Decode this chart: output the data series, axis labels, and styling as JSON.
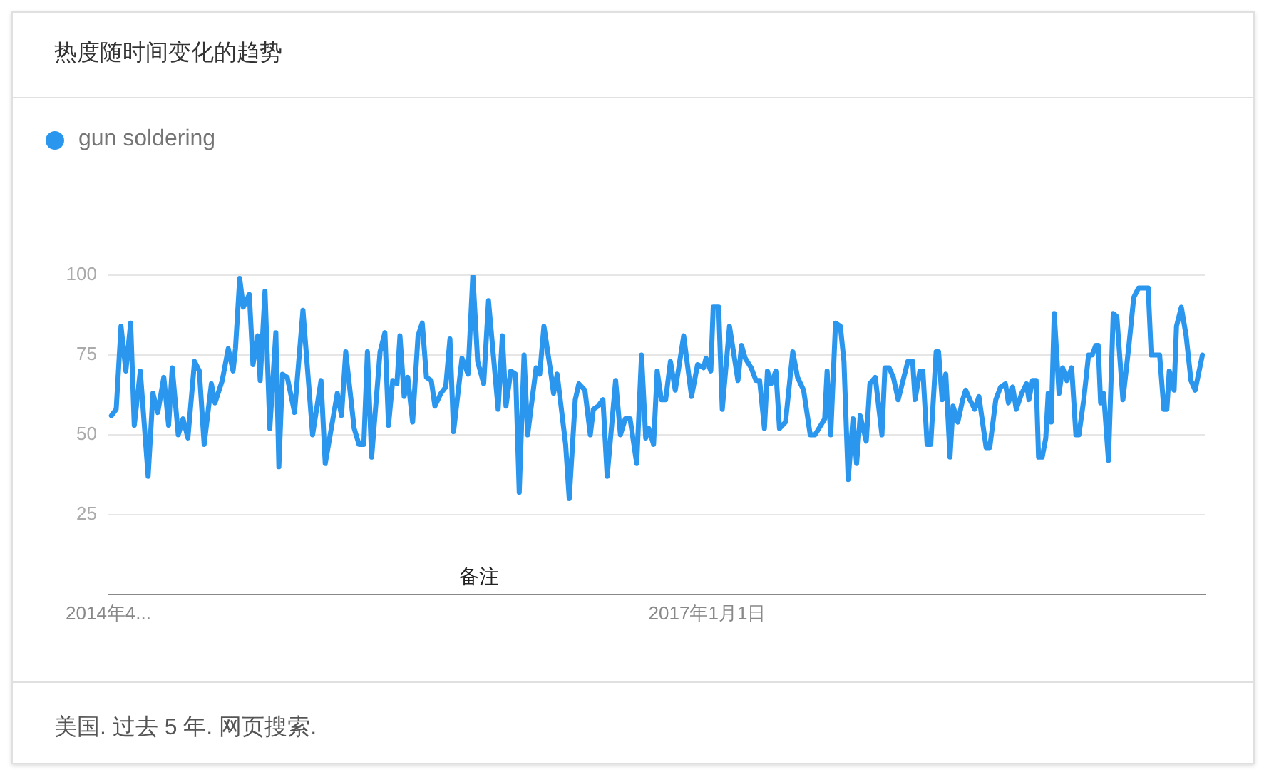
{
  "chart_data": {
    "type": "line",
    "title": "热度随时间变化的趋势",
    "legend": "top left",
    "grid": "y",
    "marker": "none",
    "line_style": "solid",
    "xlim": [
      "2014-04-13",
      "2019-04-07"
    ],
    "xticks": [
      {
        "value": "2014-04-13",
        "label": "2014年4..."
      },
      {
        "value": "2017-01-01",
        "label": "2017年1月1日"
      }
    ],
    "ylim": [
      0,
      100
    ],
    "yticks": [
      25,
      50,
      75,
      100
    ],
    "annotations": [
      "备注",
      "美国. 过去 5 年. 网页搜索."
    ],
    "series": [
      {
        "name": "gun soldering",
        "color": "#2a96ee",
        "x": [
          "2014-04-18",
          "2014-04-26",
          "2014-05-04",
          "2014-05-12",
          "2014-05-20",
          "2014-05-26",
          "2014-06-05",
          "2014-06-18",
          "2014-06-26",
          "2014-07-04",
          "2014-07-14",
          "2014-07-22",
          "2014-07-28",
          "2014-08-07",
          "2014-08-15",
          "2014-08-23",
          "2014-09-03",
          "2014-09-11",
          "2014-09-19",
          "2014-10-01",
          "2014-10-07",
          "2014-10-19",
          "2014-10-29",
          "2014-11-06",
          "2014-11-10",
          "2014-11-17",
          "2014-11-23",
          "2014-12-03",
          "2014-12-09",
          "2014-12-17",
          "2014-12-21",
          "2014-12-29",
          "2015-01-06",
          "2015-01-16",
          "2015-01-21",
          "2015-01-27",
          "2015-02-04",
          "2015-02-16",
          "2015-03-02",
          "2015-03-18",
          "2015-04-01",
          "2015-04-08",
          "2015-04-28",
          "2015-05-05",
          "2015-05-12",
          "2015-05-26",
          "2015-06-03",
          "2015-06-11",
          "2015-06-17",
          "2015-06-24",
          "2015-07-08",
          "2015-07-16",
          "2015-07-22",
          "2015-07-29",
          "2015-08-05",
          "2015-08-10",
          "2015-08-17",
          "2015-08-23",
          "2015-08-31",
          "2015-09-09",
          "2015-09-16",
          "2015-09-23",
          "2015-10-01",
          "2015-10-07",
          "2015-10-17",
          "2015-10-25",
          "2015-11-01",
          "2015-11-07",
          "2015-11-21",
          "2015-12-01",
          "2015-12-09",
          "2015-12-17",
          "2015-12-27",
          "2016-01-04",
          "2016-01-20",
          "2016-01-27",
          "2016-02-02",
          "2016-02-10",
          "2016-02-18",
          "2016-02-24",
          "2016-03-03",
          "2016-03-09",
          "2016-03-23",
          "2016-03-29",
          "2016-04-05",
          "2016-04-16",
          "2016-04-21",
          "2016-04-27",
          "2016-05-11",
          "2016-05-17",
          "2016-05-27",
          "2016-06-02",
          "2016-06-12",
          "2016-06-21",
          "2016-06-26",
          "2016-07-04",
          "2016-07-12",
          "2016-07-19",
          "2016-08-02",
          "2016-08-10",
          "2016-08-18",
          "2016-08-26",
          "2016-09-06",
          "2016-09-14",
          "2016-09-21",
          "2016-09-26",
          "2016-10-04",
          "2016-10-10",
          "2016-10-17",
          "2016-10-24",
          "2016-11-01",
          "2016-11-09",
          "2016-11-23",
          "2016-12-06",
          "2016-12-16",
          "2016-12-26",
          "2016-12-30",
          "2017-01-07",
          "2017-01-11",
          "2017-01-20",
          "2017-01-26",
          "2017-02-07",
          "2017-02-21",
          "2017-02-27",
          "2017-03-05",
          "2017-03-15",
          "2017-03-23",
          "2017-03-29",
          "2017-04-06",
          "2017-04-11",
          "2017-04-17",
          "2017-04-25",
          "2017-05-01",
          "2017-05-11",
          "2017-05-23",
          "2017-05-31",
          "2017-06-10",
          "2017-06-21",
          "2017-06-29",
          "2017-07-15",
          "2017-07-19",
          "2017-07-25",
          "2017-08-02",
          "2017-08-10",
          "2017-08-16",
          "2017-08-23",
          "2017-08-31",
          "2017-09-06",
          "2017-09-12",
          "2017-09-22",
          "2017-09-28",
          "2017-10-07",
          "2017-10-18",
          "2017-10-23",
          "2017-10-30",
          "2017-11-06",
          "2017-11-14",
          "2017-11-22",
          "2017-11-30",
          "2017-12-08",
          "2017-12-12",
          "2017-12-20",
          "2017-12-25",
          "2018-01-01",
          "2018-01-07",
          "2018-01-16",
          "2018-01-20",
          "2018-01-26",
          "2018-02-01",
          "2018-02-08",
          "2018-02-13",
          "2018-02-21",
          "2018-03-01",
          "2018-03-06",
          "2018-03-13",
          "2018-03-21",
          "2018-03-28",
          "2018-04-09",
          "2018-04-15",
          "2018-04-25",
          "2018-05-03",
          "2018-05-11",
          "2018-05-16",
          "2018-05-23",
          "2018-05-29",
          "2018-06-07",
          "2018-06-15",
          "2018-06-19",
          "2018-06-25",
          "2018-07-01",
          "2018-07-05",
          "2018-07-11",
          "2018-07-17",
          "2018-07-21",
          "2018-07-26",
          "2018-07-31",
          "2018-08-08",
          "2018-08-14",
          "2018-08-21",
          "2018-08-29",
          "2018-09-05",
          "2018-09-10",
          "2018-09-18",
          "2018-09-26",
          "2018-10-02",
          "2018-10-08",
          "2018-10-12",
          "2018-10-16",
          "2018-10-21",
          "2018-10-29",
          "2018-11-06",
          "2018-11-12",
          "2018-11-22",
          "2018-12-02",
          "2018-12-10",
          "2018-12-18",
          "2018-12-26",
          "2019-01-03",
          "2019-01-08",
          "2019-01-22",
          "2019-01-29",
          "2019-02-03",
          "2019-02-07",
          "2019-02-15",
          "2019-02-19",
          "2019-02-27",
          "2019-03-07",
          "2019-03-15",
          "2019-03-22",
          "2019-04-03"
        ],
        "values": [
          56,
          58,
          84,
          70,
          85,
          53,
          70,
          37,
          63,
          57,
          68,
          53,
          71,
          50,
          55,
          49,
          73,
          70,
          47,
          66,
          60,
          67,
          77,
          70,
          77,
          99,
          90,
          94,
          72,
          81,
          67,
          95,
          52,
          82,
          40,
          69,
          68,
          57,
          89,
          50,
          67,
          41,
          63,
          56,
          76,
          52,
          47,
          47,
          76,
          43,
          76,
          82,
          53,
          67,
          66,
          81,
          62,
          68,
          54,
          81,
          85,
          68,
          67,
          59,
          63,
          65,
          80,
          51,
          74,
          69,
          100,
          73,
          66,
          92,
          58,
          81,
          59,
          70,
          69,
          32,
          75,
          50,
          71,
          69,
          84,
          70,
          63,
          69,
          47,
          30,
          61,
          66,
          64,
          50,
          58,
          59,
          61,
          37,
          67,
          50,
          55,
          55,
          41,
          75,
          49,
          52,
          47,
          70,
          61,
          61,
          73,
          64,
          81,
          62,
          72,
          71,
          74,
          70,
          90,
          90,
          58,
          84,
          67,
          78,
          74,
          71,
          67,
          67,
          52,
          70,
          66,
          70,
          52,
          54,
          76,
          68,
          64,
          50,
          50,
          55,
          70,
          50,
          85,
          84,
          73,
          36,
          55,
          41,
          56,
          48,
          66,
          68,
          50,
          71,
          71,
          68,
          61,
          67,
          73,
          73,
          61,
          70,
          70,
          47,
          47,
          76,
          76,
          61,
          69,
          43,
          59,
          54,
          61,
          64,
          61,
          58,
          62,
          46,
          46,
          61,
          65,
          66,
          60,
          65,
          58,
          63,
          66,
          61,
          67,
          67,
          43,
          43,
          49,
          63,
          54,
          88,
          63,
          71,
          67,
          71,
          50,
          50,
          61,
          75,
          75,
          78,
          78,
          60,
          63,
          42,
          88,
          87,
          61,
          78,
          93,
          96,
          96,
          96,
          75,
          75,
          58,
          58,
          70,
          64,
          84,
          90,
          81,
          67,
          64,
          75
        ]
      }
    ]
  }
}
